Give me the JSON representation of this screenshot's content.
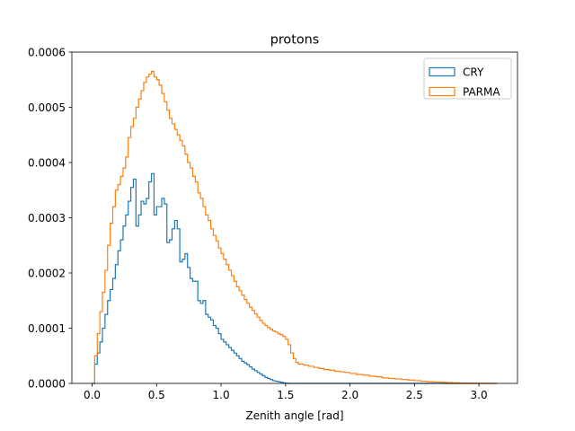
{
  "chart_data": {
    "type": "histogram-step",
    "title": "protons",
    "xlabel": "Zenith angle [rad]",
    "ylabel": "",
    "xlim": [
      -0.157,
      3.299
    ],
    "ylim": [
      0,
      0.0006
    ],
    "xticks": [
      0.0,
      0.5,
      1.0,
      1.5,
      2.0,
      2.5,
      3.0
    ],
    "xtick_labels": [
      "0.0",
      "0.5",
      "1.0",
      "1.5",
      "2.0",
      "2.5",
      "3.0"
    ],
    "yticks": [
      0.0,
      0.0001,
      0.0002,
      0.0003,
      0.0004,
      0.0005,
      0.0006
    ],
    "ytick_labels": [
      "0.0000",
      "0.0001",
      "0.0002",
      "0.0003",
      "0.0004",
      "0.0005",
      "0.0006"
    ],
    "legend_position": "top-right",
    "grid": false,
    "bin_width": 0.02,
    "series": [
      {
        "name": "CRY",
        "color": "#1f77b4",
        "points": [
          [
            0.0,
            0.0
          ],
          [
            0.02,
            3.5e-05
          ],
          [
            0.04,
            5.5e-05
          ],
          [
            0.06,
            7.5e-05
          ],
          [
            0.08,
            0.0001
          ],
          [
            0.1,
            0.000125
          ],
          [
            0.12,
            0.00015
          ],
          [
            0.14,
            0.00017
          ],
          [
            0.16,
            0.00019
          ],
          [
            0.18,
            0.000215
          ],
          [
            0.2,
            0.00024
          ],
          [
            0.22,
            0.00026
          ],
          [
            0.24,
            0.000285
          ],
          [
            0.26,
            0.000305
          ],
          [
            0.28,
            0.00033
          ],
          [
            0.3,
            0.000355
          ],
          [
            0.32,
            0.00037
          ],
          [
            0.34,
            0.000285
          ],
          [
            0.36,
            0.000305
          ],
          [
            0.38,
            0.00033
          ],
          [
            0.4,
            0.000325
          ],
          [
            0.42,
            0.000335
          ],
          [
            0.44,
            0.000365
          ],
          [
            0.46,
            0.00038
          ],
          [
            0.48,
            0.000305
          ],
          [
            0.5,
            0.00032
          ],
          [
            0.52,
            0.00032
          ],
          [
            0.54,
            0.000335
          ],
          [
            0.56,
            0.000325
          ],
          [
            0.58,
            0.000255
          ],
          [
            0.6,
            0.00026
          ],
          [
            0.62,
            0.00028
          ],
          [
            0.64,
            0.000295
          ],
          [
            0.66,
            0.00028
          ],
          [
            0.68,
            0.00022
          ],
          [
            0.7,
            0.000225
          ],
          [
            0.72,
            0.000235
          ],
          [
            0.74,
            0.00021
          ],
          [
            0.76,
            0.00019
          ],
          [
            0.78,
            0.000185
          ],
          [
            0.8,
            0.000185
          ],
          [
            0.82,
            0.00015
          ],
          [
            0.84,
            0.000145
          ],
          [
            0.86,
            0.00015
          ],
          [
            0.88,
            0.000125
          ],
          [
            0.9,
            0.00012
          ],
          [
            0.92,
            0.000115
          ],
          [
            0.94,
            0.000105
          ],
          [
            0.96,
            0.0001
          ],
          [
            0.98,
            9e-05
          ],
          [
            1.0,
            8e-05
          ],
          [
            1.02,
            7.5e-05
          ],
          [
            1.04,
            7e-05
          ],
          [
            1.06,
            6.5e-05
          ],
          [
            1.08,
            6e-05
          ],
          [
            1.1,
            5.5e-05
          ],
          [
            1.12,
            5e-05
          ],
          [
            1.14,
            4.5e-05
          ],
          [
            1.16,
            4e-05
          ],
          [
            1.18,
            3.7e-05
          ],
          [
            1.2,
            3.4e-05
          ],
          [
            1.22,
            3e-05
          ],
          [
            1.24,
            2.6e-05
          ],
          [
            1.26,
            2.3e-05
          ],
          [
            1.28,
            2e-05
          ],
          [
            1.3,
            1.7e-05
          ],
          [
            1.32,
            1.4e-05
          ],
          [
            1.34,
            1.1e-05
          ],
          [
            1.36,
            9e-06
          ],
          [
            1.38,
            7e-06
          ],
          [
            1.4,
            5e-06
          ],
          [
            1.42,
            4e-06
          ],
          [
            1.44,
            3e-06
          ],
          [
            1.46,
            2e-06
          ],
          [
            1.48,
            1e-06
          ],
          [
            1.5,
            5e-07
          ],
          [
            1.52,
            0.0
          ],
          [
            3.14,
            0.0
          ]
        ]
      },
      {
        "name": "PARMA",
        "color": "#ff7f0e",
        "points": [
          [
            0.0,
            0.0
          ],
          [
            0.02,
            5e-05
          ],
          [
            0.04,
            9e-05
          ],
          [
            0.06,
            0.00013
          ],
          [
            0.08,
            0.000165
          ],
          [
            0.1,
            0.000205
          ],
          [
            0.12,
            0.00025
          ],
          [
            0.14,
            0.00029
          ],
          [
            0.16,
            0.00032
          ],
          [
            0.18,
            0.00035
          ],
          [
            0.2,
            0.00036
          ],
          [
            0.22,
            0.000375
          ],
          [
            0.24,
            0.00039
          ],
          [
            0.26,
            0.00041
          ],
          [
            0.28,
            0.000445
          ],
          [
            0.3,
            0.000465
          ],
          [
            0.32,
            0.00048
          ],
          [
            0.34,
            0.0005
          ],
          [
            0.36,
            0.000515
          ],
          [
            0.38,
            0.00053
          ],
          [
            0.4,
            0.000545
          ],
          [
            0.42,
            0.000555
          ],
          [
            0.44,
            0.00056
          ],
          [
            0.46,
            0.000565
          ],
          [
            0.48,
            0.000555
          ],
          [
            0.5,
            0.00055
          ],
          [
            0.52,
            0.00054
          ],
          [
            0.54,
            0.000525
          ],
          [
            0.56,
            0.00051
          ],
          [
            0.58,
            0.000495
          ],
          [
            0.6,
            0.00048
          ],
          [
            0.62,
            0.00047
          ],
          [
            0.64,
            0.00046
          ],
          [
            0.66,
            0.00045
          ],
          [
            0.68,
            0.00044
          ],
          [
            0.7,
            0.00043
          ],
          [
            0.72,
            0.000415
          ],
          [
            0.74,
            0.0004
          ],
          [
            0.76,
            0.00039
          ],
          [
            0.78,
            0.000375
          ],
          [
            0.8,
            0.000365
          ],
          [
            0.82,
            0.000345
          ],
          [
            0.84,
            0.000335
          ],
          [
            0.86,
            0.00032
          ],
          [
            0.88,
            0.000305
          ],
          [
            0.9,
            0.000295
          ],
          [
            0.92,
            0.00028
          ],
          [
            0.94,
            0.000268
          ],
          [
            0.96,
            0.000258
          ],
          [
            0.98,
            0.000245
          ],
          [
            1.0,
            0.000235
          ],
          [
            1.02,
            0.000225
          ],
          [
            1.04,
            0.000215
          ],
          [
            1.06,
            0.000205
          ],
          [
            1.08,
            0.000195
          ],
          [
            1.1,
            0.000185
          ],
          [
            1.12,
            0.000175
          ],
          [
            1.14,
            0.000168
          ],
          [
            1.16,
            0.00016
          ],
          [
            1.18,
            0.000152
          ],
          [
            1.2,
            0.000145
          ],
          [
            1.22,
            0.000138
          ],
          [
            1.24,
            0.000132
          ],
          [
            1.26,
            0.000126
          ],
          [
            1.28,
            0.00012
          ],
          [
            1.3,
            0.000114
          ],
          [
            1.32,
            0.000109
          ],
          [
            1.34,
            0.000105
          ],
          [
            1.36,
            0.000101
          ],
          [
            1.38,
            9.8e-05
          ],
          [
            1.4,
            9.5e-05
          ],
          [
            1.42,
            9.3e-05
          ],
          [
            1.44,
            9e-05
          ],
          [
            1.46,
            8.8e-05
          ],
          [
            1.48,
            8.5e-05
          ],
          [
            1.5,
            8e-05
          ],
          [
            1.52,
            7e-05
          ],
          [
            1.54,
            5.5e-05
          ],
          [
            1.56,
            4.5e-05
          ],
          [
            1.58,
            3.8e-05
          ],
          [
            1.6,
            3.5e-05
          ],
          [
            1.64,
            3.3e-05
          ],
          [
            1.68,
            3.1e-05
          ],
          [
            1.72,
            2.9e-05
          ],
          [
            1.76,
            2.7e-05
          ],
          [
            1.8,
            2.5e-05
          ],
          [
            1.84,
            2.4e-05
          ],
          [
            1.88,
            2.2e-05
          ],
          [
            1.92,
            2.1e-05
          ],
          [
            1.96,
            2e-05
          ],
          [
            2.0,
            1.8e-05
          ],
          [
            2.05,
            1.6e-05
          ],
          [
            2.1,
            1.5e-05
          ],
          [
            2.15,
            1.3e-05
          ],
          [
            2.2,
            1.2e-05
          ],
          [
            2.25,
            1e-05
          ],
          [
            2.3,
            9e-06
          ],
          [
            2.35,
            8e-06
          ],
          [
            2.4,
            7e-06
          ],
          [
            2.45,
            6e-06
          ],
          [
            2.5,
            5e-06
          ],
          [
            2.55,
            4e-06
          ],
          [
            2.6,
            3e-06
          ],
          [
            2.65,
            2.5e-06
          ],
          [
            2.7,
            2e-06
          ],
          [
            2.75,
            1.5e-06
          ],
          [
            2.8,
            1e-06
          ],
          [
            2.85,
            8e-07
          ],
          [
            2.9,
            6e-07
          ],
          [
            2.95,
            4e-07
          ],
          [
            3.0,
            2e-07
          ],
          [
            3.05,
            0.0
          ],
          [
            3.14,
            0.0
          ]
        ]
      }
    ]
  }
}
